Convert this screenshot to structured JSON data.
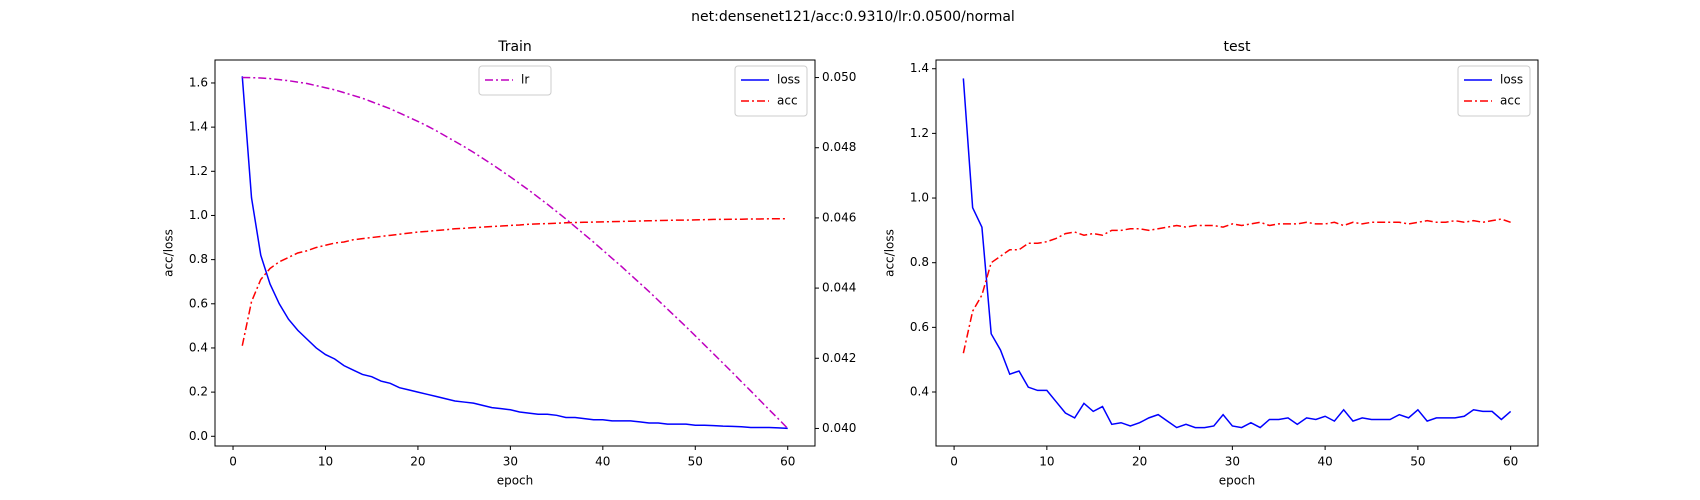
{
  "title": "net:densenet121/acc:0.9310/lr:0.0500/normal",
  "chart_data": [
    {
      "type": "line",
      "title": "Train",
      "xlabel": "epoch",
      "ylabel": "acc/loss",
      "x": [
        1,
        2,
        3,
        4,
        5,
        6,
        7,
        8,
        9,
        10,
        11,
        12,
        13,
        14,
        15,
        16,
        17,
        18,
        19,
        20,
        21,
        22,
        23,
        24,
        25,
        26,
        27,
        28,
        29,
        30,
        31,
        32,
        33,
        34,
        35,
        36,
        37,
        38,
        39,
        40,
        41,
        42,
        43,
        44,
        45,
        46,
        47,
        48,
        49,
        50,
        51,
        52,
        53,
        54,
        55,
        56,
        57,
        58,
        59,
        60
      ],
      "xlim": [
        -1.95,
        62.95
      ],
      "xticks": [
        0,
        10,
        20,
        30,
        40,
        50,
        60
      ],
      "ylim": [
        -0.044,
        1.704
      ],
      "yticks": [
        {
          "value": 0,
          "label": "0.0"
        },
        0.2,
        0.4,
        0.6,
        0.8,
        {
          "value": 1,
          "label": "1.0"
        },
        1.2,
        1.4,
        1.6
      ],
      "y2lim": [
        0.0395,
        0.0505
      ],
      "y2ticks": [
        {
          "value": 0.04,
          "label": "0.040"
        },
        {
          "value": 0.042,
          "label": "0.042"
        },
        {
          "value": 0.044,
          "label": "0.044"
        },
        {
          "value": 0.046,
          "label": "0.046"
        },
        {
          "value": 0.048,
          "label": "0.048"
        },
        {
          "value": 0.05,
          "label": "0.050"
        }
      ],
      "legend": "upper right",
      "y2_legend": "upper center",
      "series": [
        {
          "name": "loss",
          "color": "#0000ff",
          "dash": "solid",
          "values": [
            1.63,
            1.08,
            0.82,
            0.69,
            0.6,
            0.53,
            0.48,
            0.44,
            0.4,
            0.37,
            0.35,
            0.32,
            0.3,
            0.28,
            0.27,
            0.25,
            0.24,
            0.22,
            0.21,
            0.2,
            0.19,
            0.18,
            0.17,
            0.16,
            0.155,
            0.15,
            0.14,
            0.13,
            0.125,
            0.12,
            0.11,
            0.105,
            0.1,
            0.1,
            0.095,
            0.085,
            0.085,
            0.08,
            0.075,
            0.075,
            0.07,
            0.07,
            0.07,
            0.065,
            0.06,
            0.06,
            0.055,
            0.055,
            0.055,
            0.05,
            0.05,
            0.048,
            0.046,
            0.045,
            0.043,
            0.04,
            0.04,
            0.04,
            0.038,
            0.036
          ]
        },
        {
          "name": "acc",
          "color": "#ff0000",
          "dash": "dashdot",
          "values": [
            0.41,
            0.61,
            0.71,
            0.76,
            0.79,
            0.81,
            0.83,
            0.84,
            0.855,
            0.865,
            0.875,
            0.88,
            0.89,
            0.895,
            0.9,
            0.905,
            0.91,
            0.915,
            0.92,
            0.925,
            0.928,
            0.932,
            0.935,
            0.94,
            0.942,
            0.945,
            0.947,
            0.95,
            0.952,
            0.955,
            0.957,
            0.96,
            0.962,
            0.963,
            0.965,
            0.967,
            0.968,
            0.969,
            0.97,
            0.971,
            0.972,
            0.973,
            0.974,
            0.975,
            0.976,
            0.977,
            0.978,
            0.979,
            0.979,
            0.98,
            0.981,
            0.982,
            0.982,
            0.983,
            0.983,
            0.984,
            0.984,
            0.985,
            0.985,
            0.985
          ]
        },
        {
          "name": "lr",
          "color": "#bf00bf",
          "dash": "dashdot",
          "axis": "y2",
          "values": [
            0.05,
            0.049997,
            0.049986,
            0.04997,
            0.04994,
            0.04991,
            0.04987,
            0.04983,
            0.04977,
            0.04971,
            0.04965,
            0.04957,
            0.04949,
            0.04941,
            0.04931,
            0.04921,
            0.04911,
            0.04899,
            0.04887,
            0.04875,
            0.04862,
            0.04848,
            0.04833,
            0.04818,
            0.04803,
            0.04787,
            0.0477,
            0.04753,
            0.04735,
            0.04717,
            0.04698,
            0.04679,
            0.04659,
            0.04639,
            0.04618,
            0.04597,
            0.04575,
            0.04553,
            0.04531,
            0.04508,
            0.04485,
            0.04462,
            0.04438,
            0.04414,
            0.0439,
            0.04365,
            0.0434,
            0.04315,
            0.0429,
            0.04264,
            0.04238,
            0.04212,
            0.04186,
            0.0416,
            0.04133,
            0.04107,
            0.0408,
            0.04053,
            0.04027,
            0.04
          ]
        }
      ]
    },
    {
      "type": "line",
      "title": "test",
      "xlabel": "epoch",
      "ylabel": "acc/loss",
      "x": [
        1,
        2,
        3,
        4,
        5,
        6,
        7,
        8,
        9,
        10,
        11,
        12,
        13,
        14,
        15,
        16,
        17,
        18,
        19,
        20,
        21,
        22,
        23,
        24,
        25,
        26,
        27,
        28,
        29,
        30,
        31,
        32,
        33,
        34,
        35,
        36,
        37,
        38,
        39,
        40,
        41,
        42,
        43,
        44,
        45,
        46,
        47,
        48,
        49,
        50,
        51,
        52,
        53,
        54,
        55,
        56,
        57,
        58,
        59,
        60
      ],
      "xlim": [
        -1.95,
        62.95
      ],
      "xticks": [
        0,
        10,
        20,
        30,
        40,
        50,
        60
      ],
      "ylim": [
        0.233,
        1.427
      ],
      "yticks": [
        0.4,
        0.6,
        0.8,
        {
          "value": 1,
          "label": "1.0"
        },
        1.2,
        1.4
      ],
      "legend": "upper right",
      "series": [
        {
          "name": "loss",
          "color": "#0000ff",
          "dash": "solid",
          "values": [
            1.37,
            0.97,
            0.91,
            0.58,
            0.53,
            0.455,
            0.465,
            0.415,
            0.405,
            0.405,
            0.37,
            0.335,
            0.32,
            0.365,
            0.34,
            0.355,
            0.3,
            0.305,
            0.295,
            0.305,
            0.32,
            0.33,
            0.31,
            0.29,
            0.3,
            0.29,
            0.29,
            0.295,
            0.33,
            0.295,
            0.29,
            0.305,
            0.29,
            0.315,
            0.315,
            0.32,
            0.3,
            0.32,
            0.315,
            0.325,
            0.31,
            0.345,
            0.31,
            0.32,
            0.315,
            0.315,
            0.315,
            0.33,
            0.32,
            0.345,
            0.31,
            0.32,
            0.32,
            0.32,
            0.325,
            0.345,
            0.34,
            0.34,
            0.315,
            0.34
          ]
        },
        {
          "name": "acc",
          "color": "#ff0000",
          "dash": "dashdot",
          "values": [
            0.52,
            0.65,
            0.7,
            0.8,
            0.82,
            0.84,
            0.84,
            0.86,
            0.86,
            0.865,
            0.875,
            0.89,
            0.895,
            0.885,
            0.89,
            0.885,
            0.9,
            0.9,
            0.905,
            0.905,
            0.9,
            0.905,
            0.91,
            0.915,
            0.91,
            0.915,
            0.915,
            0.915,
            0.91,
            0.92,
            0.915,
            0.92,
            0.925,
            0.915,
            0.92,
            0.92,
            0.92,
            0.925,
            0.92,
            0.92,
            0.925,
            0.915,
            0.925,
            0.92,
            0.925,
            0.925,
            0.925,
            0.925,
            0.92,
            0.925,
            0.93,
            0.925,
            0.925,
            0.93,
            0.925,
            0.93,
            0.925,
            0.93,
            0.935,
            0.925
          ]
        }
      ]
    }
  ]
}
